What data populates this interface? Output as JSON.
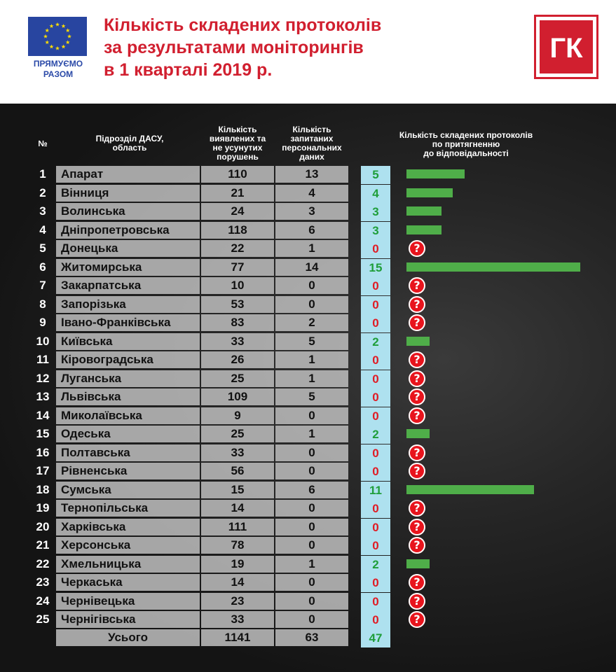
{
  "header": {
    "eu_caption_line1": "ПРЯМУЄМО",
    "eu_caption_line2": "РАЗОМ",
    "title_line1": "Кількість складених протоколів",
    "title_line2": "за результатами моніторингів",
    "title_line3": "в 1 кварталі 2019 р.",
    "logo_text": "ГК"
  },
  "colors": {
    "title_red": "#d11f2f",
    "eu_blue": "#2845a0",
    "eu_star": "#ffde00",
    "bar_green": "#4fae49",
    "protocol_cell_bg": "#aee1ef",
    "value_green": "#1f9e3a",
    "value_red": "#e01b24",
    "question_icon_red": "#e8141d"
  },
  "icons": {
    "eu_flag": "eu-flag-icon",
    "logo": "gk-logo-icon",
    "no_protocols": "question-mark-icon"
  },
  "table": {
    "col_no": "№",
    "col_name_line1": "Підрозділ ДАСУ,",
    "col_name_line2": "область",
    "col_viol_line1": "Кількість",
    "col_viol_line2": "виявлених та",
    "col_viol_line3": "не усунутих",
    "col_viol_line4": "порушень",
    "col_req_line1": "Кількість",
    "col_req_line2": "запитаних",
    "col_req_line3": "персональних",
    "col_req_line4": "даних",
    "col_prot_line1": "Кількість складених протоколів",
    "col_prot_line2": "по притягненню",
    "col_prot_line3": "до відповідальності",
    "total_label": "Усього",
    "total_violations": "1141",
    "total_requests": "63",
    "total_protocols": "47"
  },
  "chart_data": {
    "type": "table",
    "title": "Кількість складених протоколів за результатами моніторингів в 1 кварталі 2019 р.",
    "columns": [
      "№",
      "Підрозділ ДАСУ, область",
      "Кількість виявлених та не усунутих порушень",
      "Кількість запитаних персональних даних",
      "Кількість складених протоколів по притягненню до відповідальності"
    ],
    "bar_max": 15,
    "rows": [
      {
        "no": "1",
        "name": "Апарат",
        "violations": 110,
        "requests": 13,
        "protocols": 5
      },
      {
        "no": "2",
        "name": "Вінниця",
        "violations": 21,
        "requests": 4,
        "protocols": 4
      },
      {
        "no": "3",
        "name": "Волинська",
        "violations": 24,
        "requests": 3,
        "protocols": 3
      },
      {
        "no": "4",
        "name": "Дніпропетровська",
        "violations": 118,
        "requests": 6,
        "protocols": 3
      },
      {
        "no": "5",
        "name": "Донецька",
        "violations": 22,
        "requests": 1,
        "protocols": 0
      },
      {
        "no": "6",
        "name": "Житомирська",
        "violations": 77,
        "requests": 14,
        "protocols": 15
      },
      {
        "no": "7",
        "name": "Закарпатська",
        "violations": 10,
        "requests": 0,
        "protocols": 0
      },
      {
        "no": "8",
        "name": "Запорізька",
        "violations": 53,
        "requests": 0,
        "protocols": 0
      },
      {
        "no": "9",
        "name": "Івано-Франківська",
        "violations": 83,
        "requests": 2,
        "protocols": 0
      },
      {
        "no": "10",
        "name": "Київська",
        "violations": 33,
        "requests": 5,
        "protocols": 2
      },
      {
        "no": "11",
        "name": "Кіровоградська",
        "violations": 26,
        "requests": 1,
        "protocols": 0
      },
      {
        "no": "12",
        "name": "Луганська",
        "violations": 25,
        "requests": 1,
        "protocols": 0
      },
      {
        "no": "13",
        "name": "Львівська",
        "violations": 109,
        "requests": 5,
        "protocols": 0
      },
      {
        "no": "14",
        "name": "Миколаївська",
        "violations": 9,
        "requests": 0,
        "protocols": 0
      },
      {
        "no": "15",
        "name": "Одеська",
        "violations": 25,
        "requests": 1,
        "protocols": 2
      },
      {
        "no": "16",
        "name": "Полтавська",
        "violations": 33,
        "requests": 0,
        "protocols": 0
      },
      {
        "no": "17",
        "name": "Рівненська",
        "violations": 56,
        "requests": 0,
        "protocols": 0
      },
      {
        "no": "18",
        "name": "Сумська",
        "violations": 15,
        "requests": 6,
        "protocols": 11
      },
      {
        "no": "19",
        "name": "Тернопільська",
        "violations": 14,
        "requests": 0,
        "protocols": 0
      },
      {
        "no": "20",
        "name": "Харківська",
        "violations": 111,
        "requests": 0,
        "protocols": 0
      },
      {
        "no": "21",
        "name": "Херсонська",
        "violations": 78,
        "requests": 0,
        "protocols": 0
      },
      {
        "no": "22",
        "name": "Хмельницька",
        "violations": 19,
        "requests": 1,
        "protocols": 2
      },
      {
        "no": "23",
        "name": "Черкаська",
        "violations": 14,
        "requests": 0,
        "protocols": 0
      },
      {
        "no": "24",
        "name": "Чернівецька",
        "violations": 23,
        "requests": 0,
        "protocols": 0
      },
      {
        "no": "25",
        "name": "Чернігівська",
        "violations": 33,
        "requests": 0,
        "protocols": 0
      }
    ]
  }
}
